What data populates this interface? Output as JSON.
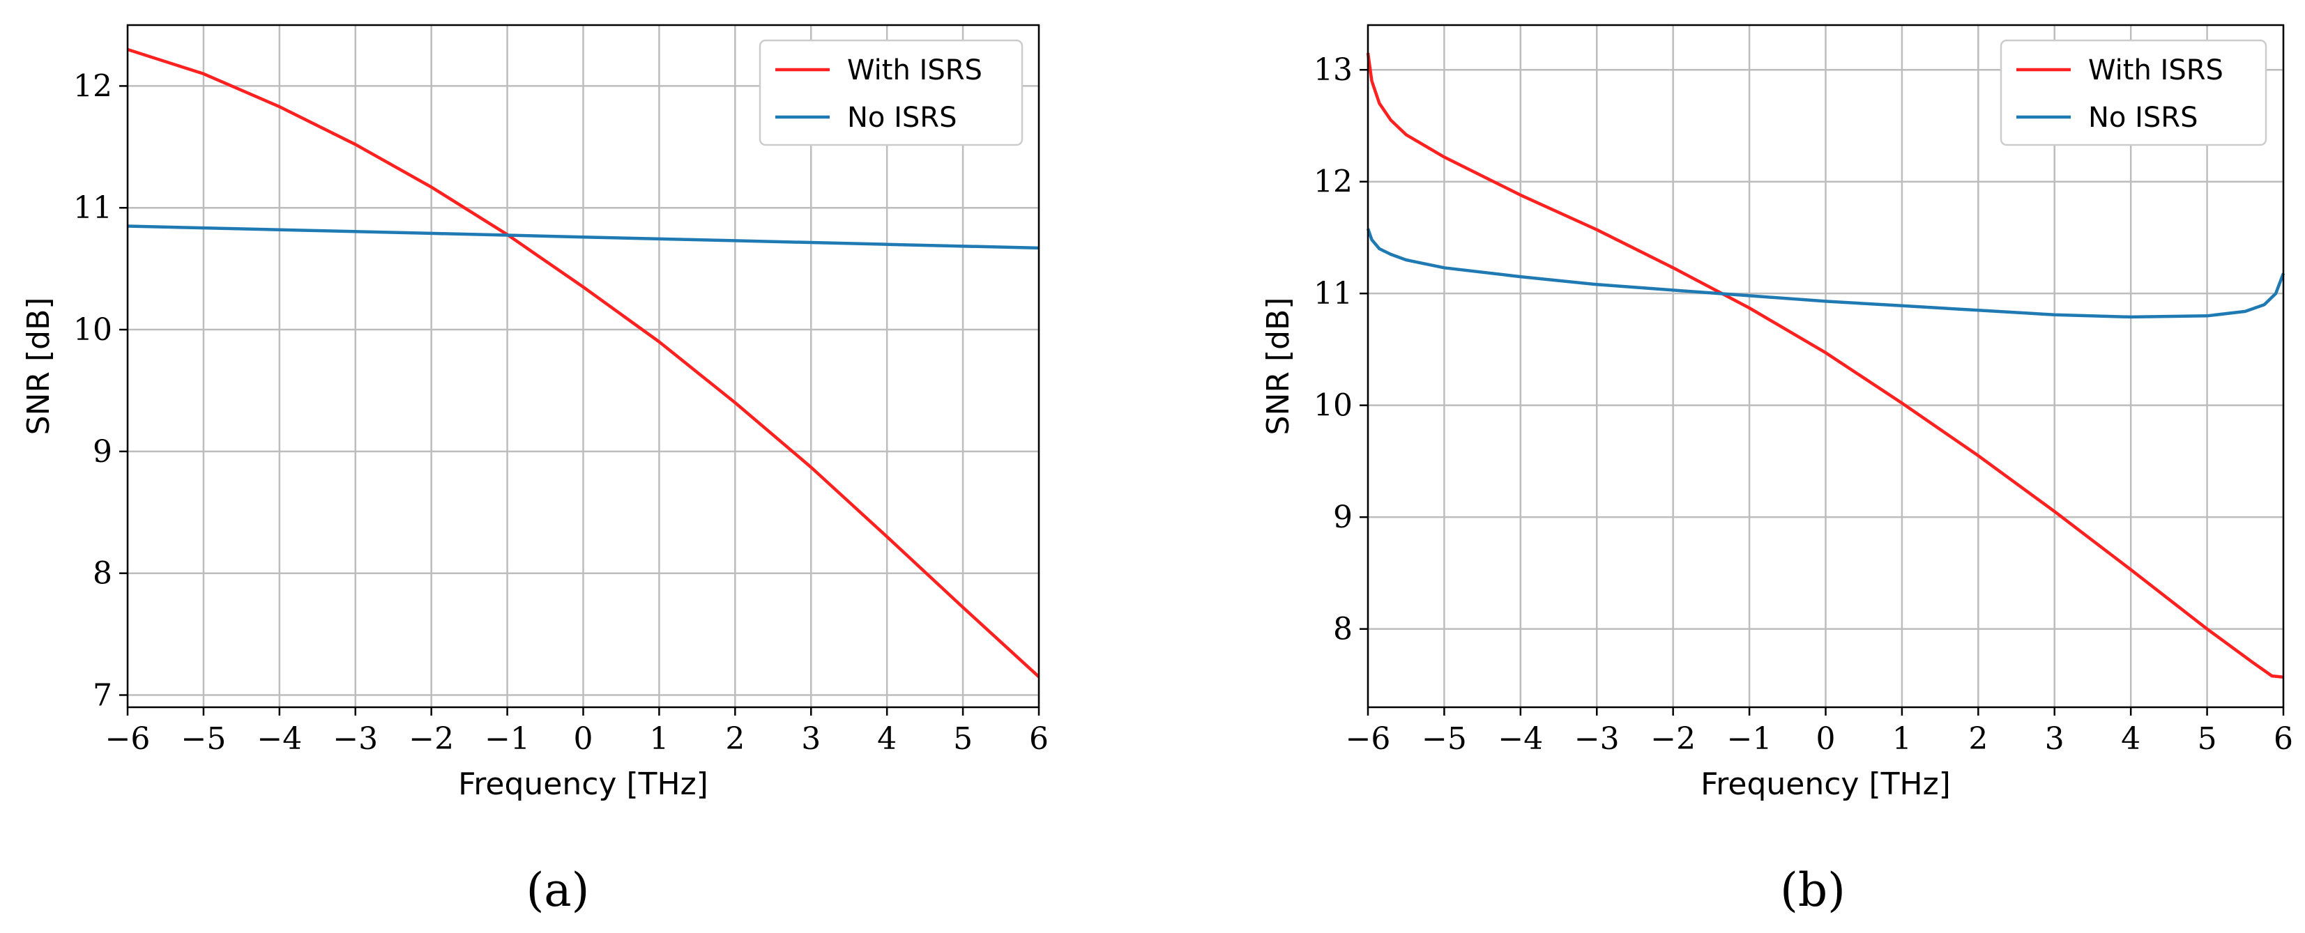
{
  "figure": {
    "captions": [
      "(a)",
      "(b)"
    ]
  },
  "chart_data": [
    {
      "type": "line",
      "panel": "a",
      "caption": "(a)",
      "xlabel": "Frequency [THz]",
      "ylabel": "SNR [dB]",
      "xlim": [
        -6,
        6
      ],
      "ylim": [
        6.9,
        12.5
      ],
      "xticks": [
        -6,
        -5,
        -4,
        -3,
        -2,
        -1,
        0,
        1,
        2,
        3,
        4,
        5,
        6
      ],
      "xtick_labels": [
        "−6",
        "−5",
        "−4",
        "−3",
        "−2",
        "−1",
        "0",
        "1",
        "2",
        "3",
        "4",
        "5",
        "6"
      ],
      "yticks": [
        7,
        8,
        9,
        10,
        11,
        12
      ],
      "ytick_labels": [
        "7",
        "8",
        "9",
        "10",
        "11",
        "12"
      ],
      "grid": true,
      "legend_position": "top-right",
      "series": [
        {
          "name": "With ISRS",
          "color": "#ff2020",
          "x": [
            -6,
            -5,
            -4,
            -3,
            -2,
            -1,
            0,
            1,
            2,
            3,
            4,
            5,
            6
          ],
          "y": [
            12.3,
            12.1,
            11.83,
            11.52,
            11.17,
            10.78,
            10.35,
            9.9,
            9.4,
            8.87,
            8.3,
            7.72,
            7.15
          ]
        },
        {
          "name": "No ISRS",
          "color": "#1f7ab4",
          "x": [
            -6,
            -4,
            -2,
            0,
            2,
            4,
            6
          ],
          "y": [
            10.85,
            10.82,
            10.79,
            10.76,
            10.73,
            10.7,
            10.67
          ]
        }
      ]
    },
    {
      "type": "line",
      "panel": "b",
      "caption": "(b)",
      "xlabel": "Frequency [THz]",
      "ylabel": "SNR [dB]",
      "xlim": [
        -6,
        6
      ],
      "ylim": [
        7.3,
        13.4
      ],
      "xticks": [
        -6,
        -5,
        -4,
        -3,
        -2,
        -1,
        0,
        1,
        2,
        3,
        4,
        5,
        6
      ],
      "xtick_labels": [
        "−6",
        "−5",
        "−4",
        "−3",
        "−2",
        "−1",
        "0",
        "1",
        "2",
        "3",
        "4",
        "5",
        "6"
      ],
      "yticks": [
        8,
        9,
        10,
        11,
        12,
        13
      ],
      "ytick_labels": [
        "8",
        "9",
        "10",
        "11",
        "12",
        "13"
      ],
      "grid": true,
      "legend_position": "top-right",
      "series": [
        {
          "name": "With ISRS",
          "color": "#ff2020",
          "x": [
            -6,
            -5.95,
            -5.85,
            -5.7,
            -5.5,
            -5,
            -4,
            -3,
            -2,
            -1,
            0,
            1,
            2,
            3,
            4,
            5,
            5.6,
            5.85,
            6
          ],
          "y": [
            13.15,
            12.9,
            12.7,
            12.55,
            12.42,
            12.22,
            11.88,
            11.57,
            11.23,
            10.87,
            10.47,
            10.02,
            9.55,
            9.05,
            8.53,
            8.0,
            7.7,
            7.58,
            7.57
          ]
        },
        {
          "name": "No ISRS",
          "color": "#1f7ab4",
          "x": [
            -6,
            -5.95,
            -5.85,
            -5.7,
            -5.5,
            -5,
            -4,
            -3,
            -2,
            -1,
            0,
            1,
            2,
            3,
            4,
            5,
            5.5,
            5.75,
            5.9,
            6
          ],
          "y": [
            11.58,
            11.48,
            11.4,
            11.35,
            11.3,
            11.23,
            11.15,
            11.08,
            11.03,
            10.98,
            10.93,
            10.89,
            10.85,
            10.81,
            10.79,
            10.8,
            10.84,
            10.9,
            11.0,
            11.18
          ]
        }
      ]
    }
  ]
}
